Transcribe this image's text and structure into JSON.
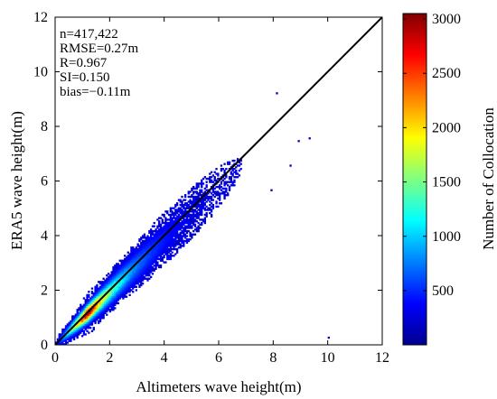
{
  "chart_data": {
    "type": "heatmap",
    "xlabel": "Altimeters wave height(m)",
    "ylabel": "ERA5 wave height(m)",
    "xlim": [
      0,
      12
    ],
    "ylim": [
      0,
      12
    ],
    "x_ticks": [
      "0",
      "2",
      "4",
      "6",
      "8",
      "10",
      "12"
    ],
    "y_ticks": [
      "0",
      "2",
      "4",
      "6",
      "8",
      "10",
      "12"
    ],
    "reference_line": {
      "x": [
        0,
        12
      ],
      "y": [
        0,
        12
      ],
      "color": "#000000"
    },
    "stats": [
      "n=417,422",
      "RMSE=0.27m",
      "R=0.967",
      "SI=0.150",
      "bias=−0.11m"
    ],
    "colorbar": {
      "label": "Number of Collocation",
      "range": [
        1,
        3050
      ],
      "ticks": [
        500,
        1000,
        1500,
        2000,
        2500,
        3000
      ],
      "tick_labels": [
        "500",
        "1000",
        "1500",
        "2000",
        "2500",
        "3000"
      ],
      "colormap": "jet"
    },
    "density_summary": {
      "ridge": [
        [
          0.2,
          0.15
        ],
        [
          0.5,
          0.4
        ],
        [
          1.0,
          0.9
        ],
        [
          1.5,
          1.35
        ],
        [
          2.0,
          1.85
        ],
        [
          3.0,
          2.85
        ],
        [
          4.0,
          3.9
        ],
        [
          5.0,
          4.9
        ],
        [
          6.0,
          5.9
        ]
      ],
      "peak_count": 3000,
      "peak_location": [
        1.2,
        1.1
      ]
    }
  }
}
